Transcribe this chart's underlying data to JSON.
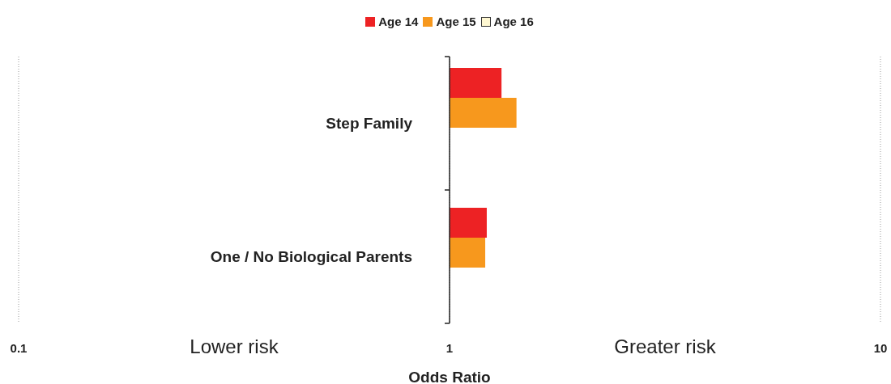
{
  "chart_data": {
    "type": "bar",
    "orientation": "horizontal",
    "categories": [
      "Step Family",
      "One / No Biological Parents"
    ],
    "series": [
      {
        "name": "Age 14",
        "color": "#ed2224",
        "base": [
          1,
          1
        ],
        "values": [
          0.32,
          0.22
        ]
      },
      {
        "name": "Age 15",
        "color": "#f7981d",
        "base": [
          1,
          1
        ],
        "values": [
          0.43,
          0.21
        ]
      },
      {
        "name": "Age 16",
        "color": "#fff8d2",
        "base": [
          null,
          null
        ],
        "values": [
          null,
          null
        ]
      }
    ],
    "log": "x",
    "xlim": [
      0.1,
      10
    ],
    "xticks": [
      0.1,
      1,
      10
    ],
    "xlabel": "Odds Ratio",
    "grid": "x",
    "legend": "top",
    "annotations": [
      "Lower risk",
      "Greater risk"
    ]
  }
}
